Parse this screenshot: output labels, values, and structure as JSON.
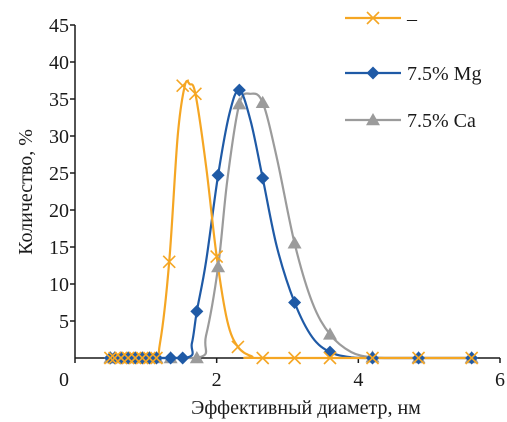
{
  "chart_data": {
    "type": "line",
    "xlabel": "Эффективный диаметр, нм",
    "ylabel": "Количество, %",
    "xlim": [
      0,
      6
    ],
    "ylim": [
      0,
      45
    ],
    "x_ticks": [
      "0",
      "2",
      "4",
      "6"
    ],
    "y_ticks": [
      "5",
      "10",
      "15",
      "20",
      "25",
      "30",
      "35",
      "40",
      "45"
    ],
    "grid": false,
    "legend_position": "top-right",
    "series": [
      {
        "name": "–",
        "color": "#F5A623",
        "marker": "x",
        "points": [
          [
            0.5,
            0
          ],
          [
            0.56,
            0
          ],
          [
            0.65,
            0
          ],
          [
            0.75,
            0
          ],
          [
            0.85,
            0
          ],
          [
            0.95,
            0
          ],
          [
            1.05,
            0
          ],
          [
            1.15,
            0
          ],
          [
            1.33,
            13
          ],
          [
            1.52,
            36.8
          ],
          [
            1.7,
            35.7
          ],
          [
            2.0,
            13.7
          ],
          [
            2.3,
            1.5
          ],
          [
            2.65,
            0
          ],
          [
            3.1,
            0
          ],
          [
            3.6,
            0
          ],
          [
            4.2,
            0
          ],
          [
            4.85,
            0
          ],
          [
            5.6,
            0
          ]
        ],
        "curve": [
          [
            0.5,
            0
          ],
          [
            1.1,
            0
          ],
          [
            1.2,
            2
          ],
          [
            1.33,
            13
          ],
          [
            1.45,
            30
          ],
          [
            1.55,
            36.8
          ],
          [
            1.62,
            37
          ],
          [
            1.7,
            35.7
          ],
          [
            1.85,
            26
          ],
          [
            2.0,
            13.7
          ],
          [
            2.15,
            5
          ],
          [
            2.3,
            1.5
          ],
          [
            2.5,
            0.2
          ],
          [
            2.65,
            0
          ],
          [
            5.6,
            0
          ]
        ]
      },
      {
        "name": "7.5% Mg",
        "color": "#1F5AA6",
        "marker": "diamond",
        "points": [
          [
            0.5,
            0
          ],
          [
            0.56,
            0
          ],
          [
            0.65,
            0
          ],
          [
            0.75,
            0
          ],
          [
            0.85,
            0
          ],
          [
            0.95,
            0
          ],
          [
            1.05,
            0
          ],
          [
            1.15,
            0
          ],
          [
            1.35,
            0
          ],
          [
            1.52,
            0
          ],
          [
            1.72,
            6.3
          ],
          [
            2.02,
            24.7
          ],
          [
            2.32,
            36.2
          ],
          [
            2.65,
            24.3
          ],
          [
            3.1,
            7.5
          ],
          [
            3.6,
            0.8
          ],
          [
            4.2,
            0
          ],
          [
            4.85,
            0
          ],
          [
            5.6,
            0
          ]
        ],
        "curve": [
          [
            0.5,
            0
          ],
          [
            1.55,
            0
          ],
          [
            1.65,
            2
          ],
          [
            1.72,
            6.3
          ],
          [
            1.85,
            13
          ],
          [
            2.02,
            24.7
          ],
          [
            2.18,
            33
          ],
          [
            2.32,
            36.2
          ],
          [
            2.48,
            32
          ],
          [
            2.65,
            24.3
          ],
          [
            2.85,
            15
          ],
          [
            3.1,
            7.5
          ],
          [
            3.35,
            2.8
          ],
          [
            3.6,
            0.8
          ],
          [
            3.9,
            0.1
          ],
          [
            4.2,
            0
          ],
          [
            5.6,
            0
          ]
        ]
      },
      {
        "name": "7.5% Ca",
        "color": "#9B9B9B",
        "marker": "triangle",
        "points": [
          [
            0.5,
            0
          ],
          [
            0.56,
            0
          ],
          [
            0.65,
            0
          ],
          [
            0.75,
            0
          ],
          [
            0.85,
            0
          ],
          [
            0.95,
            0
          ],
          [
            1.05,
            0
          ],
          [
            1.15,
            0
          ],
          [
            1.35,
            0
          ],
          [
            1.72,
            0
          ],
          [
            2.02,
            12.3
          ],
          [
            2.32,
            34.3
          ],
          [
            2.65,
            34.5
          ],
          [
            3.1,
            15.5
          ],
          [
            3.6,
            3.2
          ],
          [
            4.2,
            0.1
          ],
          [
            4.85,
            0
          ],
          [
            5.6,
            0
          ]
        ],
        "curve": [
          [
            0.5,
            0
          ],
          [
            1.72,
            0
          ],
          [
            1.85,
            3
          ],
          [
            2.02,
            12.3
          ],
          [
            2.15,
            24
          ],
          [
            2.32,
            34.3
          ],
          [
            2.48,
            35.7
          ],
          [
            2.65,
            34.5
          ],
          [
            2.85,
            27
          ],
          [
            3.1,
            15.5
          ],
          [
            3.35,
            7.5
          ],
          [
            3.6,
            3.2
          ],
          [
            3.9,
            0.8
          ],
          [
            4.2,
            0.1
          ],
          [
            4.5,
            0
          ],
          [
            5.6,
            0
          ]
        ]
      }
    ]
  }
}
